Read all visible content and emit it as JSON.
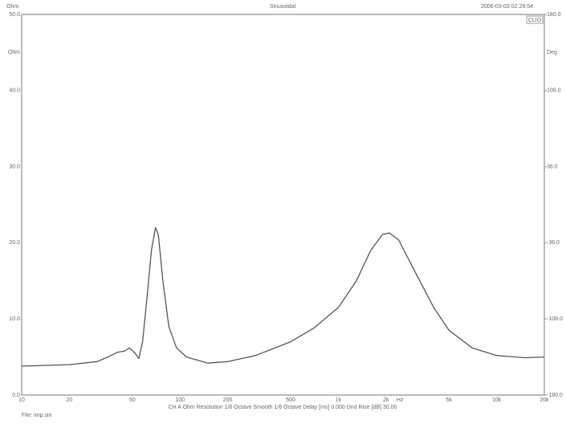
{
  "chart_data": {
    "type": "line",
    "title": "Sinusoidal",
    "header_left": "Ohm",
    "timestamp": "2006-03-03 02:29:54",
    "brand": "CLIO",
    "footer": "CH A   Ohm   Resolution 1/6 Octave   Smooth 1/6 Octave   Delay [ms] 0.000   Dnd Rise [dB] 30.00",
    "file_label": "File: imp.sin",
    "x_unit_label": "Hz",
    "x_unit_position": 3000,
    "ylabel": "Ohm",
    "ylabel_position": 45,
    "y2label": "Deg",
    "y2label_position": 144,
    "log_x": true,
    "grid": true,
    "xlim": [
      10,
      20000
    ],
    "xticks": [
      10,
      20,
      50,
      100,
      200,
      500,
      {
        "value": 1000,
        "label": "1k"
      },
      {
        "value": 2000,
        "label": "2k"
      },
      {
        "value": 5000,
        "label": "5k"
      },
      {
        "value": 10000,
        "label": "10k"
      },
      {
        "value": 20000,
        "label": "20k"
      }
    ],
    "xminorticks": [
      30,
      40,
      60,
      70,
      80,
      90,
      300,
      400,
      600,
      700,
      800,
      900,
      3000,
      4000,
      6000,
      7000,
      8000,
      9000
    ],
    "ylim": [
      0,
      50
    ],
    "yticks": [
      {
        "value": 0,
        "label": "0.0"
      },
      {
        "value": 10,
        "label": "10.0"
      },
      {
        "value": 20,
        "label": "20.0"
      },
      {
        "value": 30,
        "label": "30.0"
      },
      {
        "value": 40,
        "label": "40.0"
      },
      {
        "value": 50,
        "label": "50.0"
      }
    ],
    "yminorticks": [
      5,
      15,
      25,
      35,
      45
    ],
    "y2lim": [
      -180,
      180
    ],
    "y2ticks": [
      {
        "value": -180,
        "label": "-180.0"
      },
      {
        "value": -108,
        "label": "-108.0"
      },
      {
        "value": -36,
        "label": "-36.0"
      },
      {
        "value": 36,
        "label": "36.0"
      },
      {
        "value": 108,
        "label": "108.0"
      },
      {
        "value": 180,
        "label": "180.0"
      }
    ],
    "color": "#555555",
    "x": [
      10,
      20,
      30,
      35,
      40,
      45,
      48,
      52,
      55,
      58,
      62,
      66,
      70,
      73,
      78,
      85,
      95,
      110,
      150,
      200,
      300,
      500,
      700,
      1000,
      1300,
      1600,
      1900,
      2100,
      2400,
      3000,
      4000,
      5000,
      7000,
      10000,
      15000,
      20000
    ],
    "values": [
      3.8,
      4.0,
      4.4,
      5.0,
      5.6,
      5.8,
      6.2,
      5.5,
      4.8,
      7,
      13,
      19,
      22,
      21,
      15,
      9,
      6.2,
      5,
      4.2,
      4.4,
      5.2,
      7,
      8.8,
      11.5,
      15,
      19,
      21.1,
      21.3,
      20.4,
      16.5,
      11.5,
      8.5,
      6.2,
      5.2,
      4.9,
      5.0
    ]
  }
}
